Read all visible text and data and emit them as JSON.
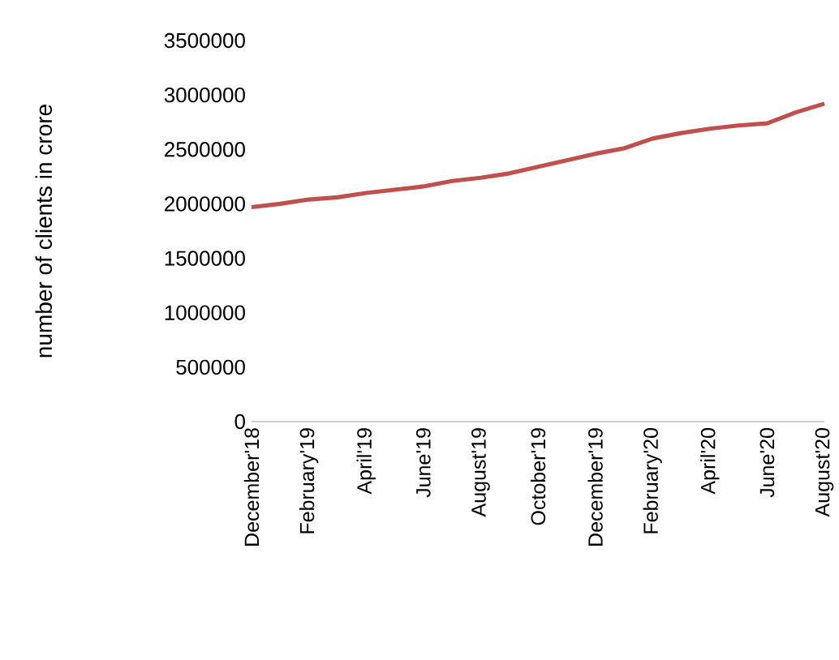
{
  "chart_data": {
    "type": "line",
    "ylabel": "number of clients in crore",
    "categories": [
      "December'18",
      null,
      "February'19",
      null,
      "April'19",
      null,
      "June'19",
      null,
      "August'19",
      null,
      "October'19",
      null,
      "December'19",
      null,
      "February'20",
      null,
      "April'20",
      null,
      "June'20",
      null,
      "August'20"
    ],
    "series": [
      {
        "color": "#c0504d",
        "values": [
          1970000,
          2000000,
          2040000,
          2060000,
          2100000,
          2130000,
          2160000,
          2210000,
          2240000,
          2280000,
          2340000,
          2400000,
          2460000,
          2510000,
          2600000,
          2650000,
          2690000,
          2720000,
          2740000,
          2840000,
          2920000
        ]
      }
    ],
    "ylim": [
      0,
      3500000
    ],
    "yticks": [
      0,
      500000,
      1000000,
      1500000,
      2000000,
      2500000,
      3000000,
      3500000
    ],
    "grid": false,
    "marker": "none",
    "line_style": "solid"
  }
}
